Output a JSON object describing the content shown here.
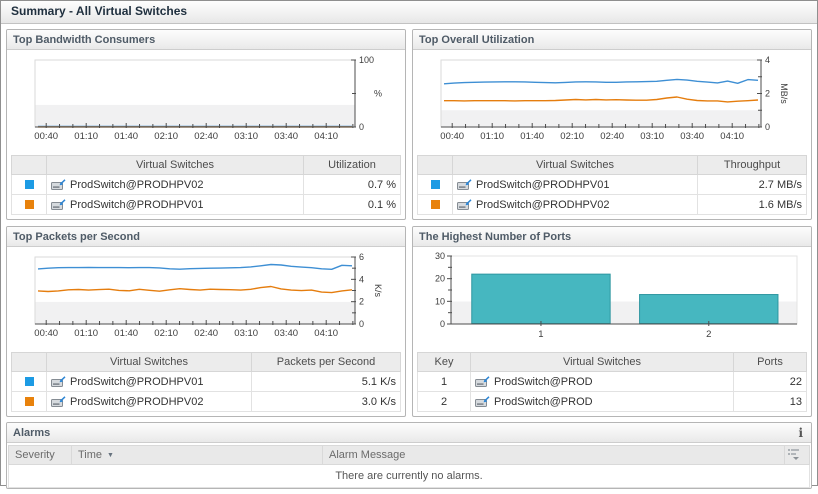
{
  "title": "Summary - All Virtual Switches",
  "icons": {
    "info": "i",
    "sort_desc": "▼"
  },
  "time_labels": [
    "00:40",
    "01:10",
    "01:40",
    "02:10",
    "02:40",
    "03:10",
    "03:40",
    "04:10"
  ],
  "panels": {
    "bandwidth": {
      "title": "Top Bandwidth Consumers",
      "table": {
        "headers": [
          "",
          "Virtual Switches",
          "Utilization"
        ],
        "value_col_width": 88,
        "rows": [
          {
            "swatch": "#1d9be4",
            "icon": "virtual-switch-icon",
            "name": "ProdSwitch@PRODHPV02",
            "value": "0.7 %"
          },
          {
            "swatch": "#e8820c",
            "icon": "virtual-switch-icon",
            "name": "ProdSwitch@PRODHPV01",
            "value": "0.1 %"
          }
        ]
      }
    },
    "utilization": {
      "title": "Top Overall Utilization",
      "table": {
        "headers": [
          "",
          "Virtual Switches",
          "Throughput"
        ],
        "value_col_width": 100,
        "rows": [
          {
            "swatch": "#1d9be4",
            "icon": "virtual-switch-icon",
            "name": "ProdSwitch@PRODHPV01",
            "value": "2.7 MB/s"
          },
          {
            "swatch": "#e8820c",
            "icon": "virtual-switch-icon",
            "name": "ProdSwitch@PRODHPV02",
            "value": "1.6 MB/s"
          }
        ]
      }
    },
    "packets": {
      "title": "Top Packets per Second",
      "table": {
        "headers": [
          "",
          "Virtual Switches",
          "Packets per Second"
        ],
        "value_col_width": 140,
        "rows": [
          {
            "swatch": "#1d9be4",
            "icon": "virtual-switch-icon",
            "name": "ProdSwitch@PRODHPV01",
            "value": "5.1 K/s"
          },
          {
            "swatch": "#e8820c",
            "icon": "virtual-switch-icon",
            "name": "ProdSwitch@PRODHPV02",
            "value": "3.0 K/s"
          }
        ]
      }
    },
    "ports": {
      "title": "The Highest Number of Ports",
      "table": {
        "headers": [
          "Key",
          "Virtual Switches",
          "Ports"
        ],
        "key_col": true,
        "key_col_width": 44,
        "value_col_width": 64,
        "rows": [
          {
            "key": "1",
            "icon": "virtual-switch-icon",
            "name": "ProdSwitch@PROD",
            "value": "22"
          },
          {
            "key": "2",
            "icon": "virtual-switch-icon",
            "name": "ProdSwitch@PROD",
            "value": "13"
          }
        ]
      }
    }
  },
  "chart_data": [
    {
      "id": "bandwidth",
      "type": "line",
      "title": "Top Bandwidth Consumers",
      "ylabel_unit": "%",
      "unit_rotated": false,
      "ylim": [
        0,
        100
      ],
      "y_ticks": [
        {
          "v": 0,
          "t": "0"
        },
        {
          "v": 50,
          "t": ""
        },
        {
          "v": 100,
          "t": "100"
        }
      ],
      "band_fraction": 0.33,
      "x_labels": [
        "00:40",
        "01:10",
        "01:40",
        "02:10",
        "02:40",
        "03:10",
        "03:40",
        "04:10"
      ],
      "series": [
        {
          "name": "ProdSwitch@PRODHPV02",
          "color": "#3e8fd4",
          "values": [
            0.7,
            0.7,
            0.7,
            0.7,
            0.7,
            0.7,
            0.7,
            0.7,
            0.7,
            0.7,
            0.7,
            0.7,
            0.7,
            0.7,
            0.7,
            0.7,
            0.7,
            0.7,
            0.7,
            0.7,
            0.7,
            0.7,
            0.7,
            0.7,
            0.7,
            0.7,
            0.7,
            0.7,
            0.7,
            0.7,
            0.8,
            0.8
          ]
        },
        {
          "name": "ProdSwitch@PRODHPV01",
          "color": "#e57d0e",
          "values": [
            0.1,
            0.1,
            0.1,
            0.1,
            0.1,
            0.1,
            0.1,
            0.1,
            0.1,
            0.1,
            0.1,
            0.1,
            0.1,
            0.1,
            0.1,
            0.1,
            0.1,
            0.1,
            0.1,
            0.1,
            0.1,
            0.1,
            0.1,
            0.1,
            0.1,
            0.1,
            0.1,
            0.1,
            0.1,
            0.1,
            0.1,
            0.1
          ]
        }
      ]
    },
    {
      "id": "utilization",
      "type": "line",
      "title": "Top Overall Utilization",
      "ylabel_unit": "MB/s",
      "unit_rotated": true,
      "ylim": [
        0,
        4
      ],
      "y_ticks": [
        {
          "v": 0,
          "t": "0"
        },
        {
          "v": 1,
          "t": ""
        },
        {
          "v": 2,
          "t": "2"
        },
        {
          "v": 3,
          "t": ""
        },
        {
          "v": 4,
          "t": "4"
        }
      ],
      "band_fraction": 0.25,
      "x_labels": [
        "00:40",
        "01:10",
        "01:40",
        "02:10",
        "02:40",
        "03:10",
        "03:40",
        "04:10"
      ],
      "series": [
        {
          "name": "ProdSwitch@PRODHPV01",
          "color": "#3e8fd4",
          "values": [
            2.58,
            2.62,
            2.65,
            2.67,
            2.68,
            2.69,
            2.7,
            2.7,
            2.69,
            2.67,
            2.65,
            2.64,
            2.66,
            2.69,
            2.7,
            2.69,
            2.67,
            2.67,
            2.69,
            2.7,
            2.71,
            2.73,
            2.79,
            2.84,
            2.8,
            2.73,
            2.68,
            2.63,
            2.74,
            2.61,
            2.83,
            2.79
          ]
        },
        {
          "name": "ProdSwitch@PRODHPV02",
          "color": "#e57d0e",
          "values": [
            1.57,
            1.57,
            1.56,
            1.57,
            1.57,
            1.57,
            1.57,
            1.56,
            1.57,
            1.57,
            1.57,
            1.58,
            1.61,
            1.64,
            1.62,
            1.64,
            1.62,
            1.63,
            1.61,
            1.6,
            1.6,
            1.64,
            1.73,
            1.79,
            1.66,
            1.58,
            1.56,
            1.56,
            1.5,
            1.54,
            1.57,
            1.61
          ]
        }
      ]
    },
    {
      "id": "packets",
      "type": "line",
      "title": "Top Packets per Second",
      "ylabel_unit": "K/s",
      "unit_rotated": true,
      "ylim": [
        0,
        6
      ],
      "y_ticks": [
        {
          "v": 0,
          "t": "0"
        },
        {
          "v": 1,
          "t": ""
        },
        {
          "v": 2,
          "t": "2"
        },
        {
          "v": 3,
          "t": ""
        },
        {
          "v": 4,
          "t": "4"
        },
        {
          "v": 5,
          "t": ""
        },
        {
          "v": 6,
          "t": "6"
        }
      ],
      "band_fraction": 0.33,
      "x_labels": [
        "00:40",
        "01:10",
        "01:40",
        "02:10",
        "02:40",
        "03:10",
        "03:40",
        "04:10"
      ],
      "series": [
        {
          "name": "ProdSwitch@PRODHPV01",
          "color": "#3e8fd4",
          "values": [
            4.93,
            5.0,
            5.04,
            5.05,
            5.05,
            5.06,
            5.05,
            5.05,
            5.05,
            5.04,
            5.05,
            5.05,
            5.02,
            4.94,
            4.91,
            4.95,
            4.98,
            5.0,
            5.01,
            5.03,
            5.05,
            5.11,
            5.21,
            5.33,
            5.28,
            5.17,
            5.1,
            5.04,
            4.94,
            4.9,
            5.26,
            5.21
          ]
        },
        {
          "name": "ProdSwitch@PRODHPV02",
          "color": "#e57d0e",
          "values": [
            2.96,
            2.91,
            2.96,
            3.06,
            3.09,
            3.04,
            3.08,
            3.12,
            3.01,
            2.97,
            3.11,
            3.02,
            2.94,
            3.06,
            3.16,
            3.09,
            3.04,
            3.12,
            3.09,
            3.07,
            3.04,
            3.11,
            3.26,
            3.36,
            3.14,
            3.04,
            2.99,
            3.04,
            2.86,
            2.81,
            2.96,
            3.06
          ]
        }
      ]
    },
    {
      "id": "ports",
      "type": "bar",
      "title": "The Highest Number of Ports",
      "categories": [
        "1",
        "2"
      ],
      "values": [
        22,
        13
      ],
      "fill": "#46b7c0",
      "stroke": "#2d96a0",
      "ylim": [
        0,
        30
      ],
      "y_ticks": [
        {
          "v": 0,
          "t": "0"
        },
        {
          "v": 5,
          "t": ""
        },
        {
          "v": 10,
          "t": "10"
        },
        {
          "v": 15,
          "t": ""
        },
        {
          "v": 20,
          "t": "20"
        },
        {
          "v": 25,
          "t": ""
        },
        {
          "v": 30,
          "t": "30"
        }
      ],
      "band_fraction": 0.33
    }
  ],
  "alarms": {
    "title": "Alarms",
    "columns": [
      "Severity",
      "Time",
      "Alarm Message"
    ],
    "sorted_by": "Time",
    "sort_direction": "desc",
    "empty_message": "There are currently no alarms."
  }
}
